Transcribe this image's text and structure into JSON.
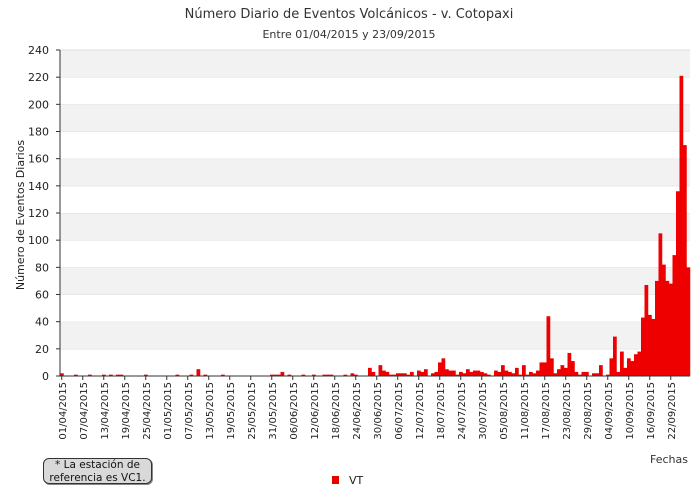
{
  "chart_data": {
    "type": "bar",
    "title": "Número Diario de Eventos Volcánicos -  v. Cotopaxi",
    "subtitle": "Entre 01/04/2015 y 23/09/2015",
    "ylabel": "Número de Eventos Diarios",
    "xlabel": "Fechas",
    "ylim": [
      0,
      240
    ],
    "yticks": [
      0,
      20,
      40,
      60,
      80,
      100,
      120,
      140,
      160,
      180,
      200,
      220,
      240
    ],
    "xticks": [
      "01/04/2015",
      "07/04/2015",
      "13/04/2015",
      "19/04/2015",
      "25/04/2015",
      "01/05/2015",
      "07/05/2015",
      "13/05/2015",
      "19/05/2015",
      "25/05/2015",
      "31/05/2015",
      "06/06/2015",
      "12/06/2015",
      "18/06/2015",
      "24/06/2015",
      "30/06/2015",
      "06/07/2015",
      "12/07/2015",
      "18/07/2015",
      "24/07/2015",
      "30/07/2015",
      "05/08/2015",
      "11/08/2015",
      "17/08/2015",
      "23/08/2015",
      "29/08/2015",
      "04/09/2015",
      "10/09/2015",
      "16/09/2015",
      "22/09/2015"
    ],
    "grid": "horizontal bands",
    "legend_position": "bottom",
    "series": [
      {
        "name": "VT",
        "color": "#ee0000",
        "values": [
          2,
          0,
          0,
          0,
          1,
          0,
          0,
          0,
          1,
          0,
          0,
          0,
          1,
          0,
          1,
          0,
          1,
          1,
          0,
          0,
          0,
          0,
          0,
          0,
          1,
          0,
          0,
          0,
          0,
          0,
          0,
          0,
          0,
          1,
          0,
          0,
          0,
          1,
          0,
          5,
          0,
          1,
          0,
          0,
          0,
          0,
          1,
          0,
          0,
          0,
          0,
          0,
          0,
          0,
          0,
          0,
          0,
          0,
          0,
          0,
          1,
          1,
          1,
          3,
          0,
          1,
          0,
          0,
          0,
          1,
          0,
          0,
          1,
          0,
          0,
          1,
          1,
          1,
          0,
          0,
          0,
          1,
          0,
          2,
          1,
          0,
          0,
          0,
          6,
          3,
          0,
          8,
          4,
          3,
          1,
          1,
          2,
          2,
          2,
          1,
          3,
          0,
          4,
          3,
          5,
          0,
          2,
          3,
          10,
          13,
          5,
          4,
          4,
          1,
          3,
          2,
          5,
          3,
          4,
          4,
          3,
          2,
          1,
          0,
          4,
          3,
          8,
          4,
          3,
          2,
          6,
          1,
          8,
          1,
          3,
          2,
          4,
          10,
          10,
          44,
          13,
          2,
          5,
          8,
          6,
          17,
          11,
          3,
          1,
          3,
          3,
          0,
          2,
          2,
          8,
          0,
          1,
          13,
          29,
          3,
          18,
          6,
          13,
          11,
          16,
          18,
          43,
          67,
          45,
          42,
          70,
          105,
          82,
          70,
          68,
          89,
          136,
          221,
          170,
          80
        ]
      }
    ]
  },
  "legend": {
    "label": "VT"
  },
  "note": {
    "line1": "* La estación de",
    "line2": "referencia es VC1."
  }
}
